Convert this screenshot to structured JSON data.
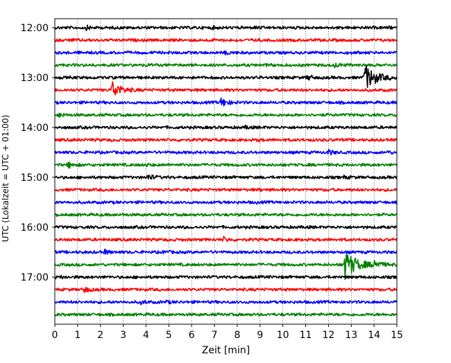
{
  "chart_data": {
    "type": "line",
    "title": "",
    "xlabel": "Zeit  [min]",
    "ylabel": "UTC (Lokalzeit = UTC + 01:00)",
    "xlim": [
      0,
      15
    ],
    "x_ticks": [
      0,
      1,
      2,
      3,
      4,
      5,
      6,
      7,
      8,
      9,
      10,
      11,
      12,
      13,
      14,
      15
    ],
    "grid": "vertical-dotted",
    "trace_interval_minutes": 15,
    "start_time": "12:00",
    "y_tick_labels": [
      "12:00",
      "13:00",
      "14:00",
      "15:00",
      "16:00",
      "17:00"
    ],
    "colors": [
      "#000000",
      "#ff0000",
      "#0000ff",
      "#008000"
    ],
    "traces": [
      {
        "label": "12:00",
        "color": "#000000",
        "events": [
          {
            "t": 1.4,
            "amp": 0.35
          },
          {
            "t": 6.9,
            "amp": 0.2
          },
          {
            "t": 8.8,
            "amp": 0.15
          },
          {
            "t": 14.7,
            "amp": 0.15
          }
        ]
      },
      {
        "label": "12:15",
        "color": "#ff0000",
        "events": [
          {
            "t": 0.7,
            "amp": 0.15
          },
          {
            "t": 7.0,
            "amp": 0.12
          }
        ]
      },
      {
        "label": "12:30",
        "color": "#0000ff",
        "events": [
          {
            "t": 7.5,
            "amp": 0.3
          },
          {
            "t": 13.0,
            "amp": 0.15
          }
        ]
      },
      {
        "label": "12:45",
        "color": "#008000",
        "events": [
          {
            "t": 4.0,
            "amp": 0.15
          },
          {
            "t": 9.3,
            "amp": 0.12
          },
          {
            "t": 12.3,
            "amp": 0.4
          }
        ]
      },
      {
        "label": "13:00",
        "color": "#000000",
        "events": [
          {
            "t": 11.1,
            "amp": 0.5
          },
          {
            "t": 13.6,
            "amp": 2.6
          }
        ]
      },
      {
        "label": "13:15",
        "color": "#ff0000",
        "events": [
          {
            "t": 2.5,
            "amp": 1.8
          }
        ]
      },
      {
        "label": "13:30",
        "color": "#0000ff",
        "events": [
          {
            "t": 7.3,
            "amp": 0.9
          }
        ]
      },
      {
        "label": "13:45",
        "color": "#008000",
        "events": [
          {
            "t": 0.2,
            "amp": 0.4
          }
        ]
      },
      {
        "label": "14:00",
        "color": "#000000",
        "events": [
          {
            "t": 8.4,
            "amp": 0.3
          }
        ]
      },
      {
        "label": "14:15",
        "color": "#ff0000",
        "events": [
          {
            "t": 8.9,
            "amp": 0.15
          }
        ]
      },
      {
        "label": "14:30",
        "color": "#0000ff",
        "events": [
          {
            "t": 12.0,
            "amp": 0.45
          },
          {
            "t": 14.6,
            "amp": 0.2
          }
        ]
      },
      {
        "label": "14:45",
        "color": "#008000",
        "events": [
          {
            "t": 0.6,
            "amp": 0.55
          },
          {
            "t": 4.0,
            "amp": 0.2
          }
        ]
      },
      {
        "label": "15:00",
        "color": "#000000",
        "events": [
          {
            "t": 4.1,
            "amp": 0.55
          },
          {
            "t": 12.7,
            "amp": 0.25
          }
        ]
      },
      {
        "label": "15:15",
        "color": "#ff0000",
        "events": [
          {
            "t": 9.0,
            "amp": 0.1
          }
        ]
      },
      {
        "label": "15:30",
        "color": "#0000ff",
        "events": [
          {
            "t": 8.8,
            "amp": 0.12
          }
        ]
      },
      {
        "label": "15:45",
        "color": "#008000",
        "events": [
          {
            "t": 3.0,
            "amp": 0.12
          }
        ]
      },
      {
        "label": "16:00",
        "color": "#000000",
        "events": [
          {
            "t": 11.0,
            "amp": 0.12
          }
        ]
      },
      {
        "label": "16:15",
        "color": "#ff0000",
        "events": [
          {
            "t": 7.4,
            "amp": 0.4
          }
        ]
      },
      {
        "label": "16:30",
        "color": "#0000ff",
        "events": [
          {
            "t": 2.2,
            "amp": 0.4
          },
          {
            "t": 4.8,
            "amp": 0.25
          }
        ]
      },
      {
        "label": "16:45",
        "color": "#008000",
        "events": [
          {
            "t": 12.7,
            "amp": 3.0
          },
          {
            "t": 14.0,
            "amp": 0.8
          }
        ]
      },
      {
        "label": "17:00",
        "color": "#000000",
        "events": [
          {
            "t": 0.3,
            "amp": 0.2
          }
        ]
      },
      {
        "label": "17:15",
        "color": "#ff0000",
        "events": [
          {
            "t": 1.3,
            "amp": 0.55
          }
        ]
      },
      {
        "label": "17:30",
        "color": "#0000ff",
        "events": [
          {
            "t": 3.8,
            "amp": 0.35
          },
          {
            "t": 4.9,
            "amp": 0.2
          }
        ]
      },
      {
        "label": "17:45",
        "color": "#008000",
        "events": []
      }
    ]
  }
}
